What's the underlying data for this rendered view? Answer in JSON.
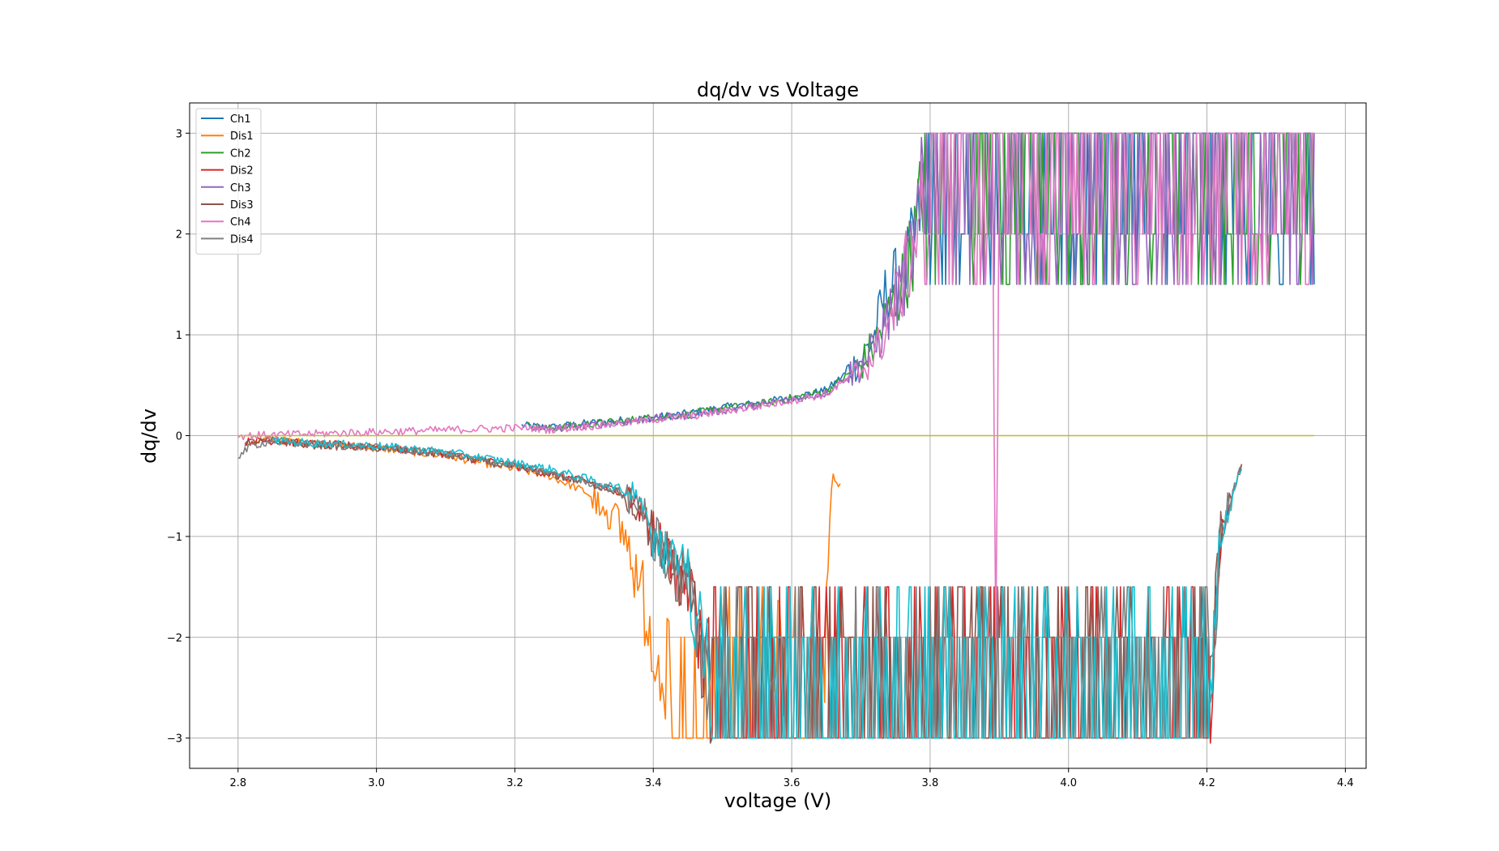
{
  "chart_data": {
    "type": "line",
    "title": "dq/dv vs Voltage",
    "xlabel": "voltage (V)",
    "ylabel": "dq/dv",
    "xlim": [
      2.73,
      4.43
    ],
    "ylim": [
      -3.3,
      3.3
    ],
    "xticks": [
      2.8,
      3.0,
      3.2,
      3.4,
      3.6,
      3.8,
      4.0,
      4.2,
      4.4
    ],
    "xtick_labels": [
      "2.8",
      "3.0",
      "3.2",
      "3.4",
      "3.6",
      "3.8",
      "4.0",
      "4.2",
      "4.4"
    ],
    "yticks": [
      -3,
      -2,
      -1,
      0,
      1,
      2,
      3
    ],
    "ytick_labels": [
      "−3",
      "−2",
      "−1",
      "0",
      "1",
      "2",
      "3"
    ],
    "grid": true,
    "legend_position": "top-left",
    "series": [
      {
        "name": "Ch1",
        "color": "#1f77b4",
        "kind": "charge",
        "x": [
          3.21,
          3.25,
          3.3,
          3.35,
          3.4,
          3.45,
          3.5,
          3.55,
          3.6,
          3.65,
          3.7,
          3.72,
          3.74,
          3.76,
          3.78,
          3.8,
          3.85,
          3.9,
          3.95,
          4.0,
          4.05,
          4.1,
          4.15,
          4.2,
          4.25,
          4.3,
          4.355
        ],
        "y": [
          0.1,
          0.08,
          0.12,
          0.15,
          0.18,
          0.22,
          0.28,
          0.32,
          0.38,
          0.45,
          0.75,
          1.0,
          1.5,
          1.5,
          2.0,
          3.0,
          3.0,
          3.0,
          3.0,
          3.0,
          3.0,
          3.0,
          3.0,
          3.0,
          3.0,
          3.0,
          3.0
        ]
      },
      {
        "name": "Dis1",
        "color": "#ff7f0e",
        "kind": "discharge",
        "x": [
          2.82,
          2.85,
          2.9,
          3.0,
          3.1,
          3.2,
          3.25,
          3.3,
          3.33,
          3.36,
          3.38,
          3.4,
          3.45,
          3.5,
          3.55,
          3.58,
          3.6,
          3.645,
          3.65,
          3.66,
          3.67
        ],
        "y": [
          -0.05,
          -0.04,
          -0.07,
          -0.12,
          -0.2,
          -0.33,
          -0.4,
          -0.55,
          -0.7,
          -1.0,
          -1.5,
          -2.0,
          -3.0,
          -3.0,
          -3.0,
          -2.0,
          -3.0,
          -3.0,
          -1.5,
          -0.4,
          -0.5
        ]
      },
      {
        "name": "Ch2",
        "color": "#2ca02c",
        "kind": "charge",
        "x": [
          3.22,
          3.25,
          3.3,
          3.35,
          3.4,
          3.45,
          3.5,
          3.55,
          3.6,
          3.65,
          3.7,
          3.72,
          3.74,
          3.76,
          3.78,
          3.8,
          3.85,
          3.9,
          3.95,
          4.0,
          4.05,
          4.1,
          4.15,
          4.2,
          4.25,
          4.3,
          4.355
        ],
        "y": [
          0.1,
          0.07,
          0.11,
          0.14,
          0.18,
          0.21,
          0.27,
          0.31,
          0.37,
          0.44,
          0.7,
          0.9,
          1.2,
          1.5,
          2.0,
          3.0,
          3.0,
          3.0,
          3.0,
          3.0,
          3.0,
          3.0,
          3.0,
          3.0,
          3.0,
          3.0,
          3.0
        ]
      },
      {
        "name": "Dis2",
        "color": "#d62728",
        "kind": "discharge",
        "x": [
          2.81,
          2.85,
          2.9,
          3.0,
          3.1,
          3.2,
          3.25,
          3.3,
          3.35,
          3.38,
          3.4,
          3.45,
          3.5,
          3.55,
          3.6,
          3.7,
          3.8,
          3.9,
          4.0,
          4.1,
          4.2,
          4.22,
          4.24,
          4.25
        ],
        "y": [
          -0.06,
          -0.05,
          -0.08,
          -0.11,
          -0.18,
          -0.3,
          -0.38,
          -0.45,
          -0.55,
          -0.7,
          -1.0,
          -1.5,
          -3.0,
          -3.0,
          -3.0,
          -3.0,
          -3.0,
          -3.0,
          -3.0,
          -3.0,
          -3.0,
          -1.0,
          -0.5,
          -0.3
        ]
      },
      {
        "name": "Ch3",
        "color": "#9467bd",
        "kind": "charge",
        "x": [
          3.22,
          3.25,
          3.3,
          3.35,
          3.4,
          3.45,
          3.5,
          3.55,
          3.6,
          3.65,
          3.7,
          3.72,
          3.74,
          3.76,
          3.78,
          3.8,
          3.85,
          3.9,
          3.95,
          4.0,
          4.05,
          4.1,
          4.15,
          4.2,
          4.25,
          4.3,
          4.355
        ],
        "y": [
          0.09,
          0.06,
          0.1,
          0.13,
          0.17,
          0.2,
          0.25,
          0.3,
          0.36,
          0.42,
          0.7,
          0.85,
          1.2,
          1.5,
          2.0,
          3.0,
          3.0,
          3.0,
          3.0,
          3.0,
          3.0,
          3.0,
          3.0,
          3.0,
          3.0,
          3.0,
          3.0
        ]
      },
      {
        "name": "Dis3",
        "color": "#8c564b",
        "kind": "discharge",
        "x": [
          2.81,
          2.85,
          2.9,
          3.0,
          3.1,
          3.2,
          3.25,
          3.3,
          3.35,
          3.38,
          3.4,
          3.45,
          3.5,
          3.55,
          3.6,
          3.7,
          3.8,
          3.9,
          4.0,
          4.1,
          4.2,
          4.22,
          4.24,
          4.25
        ],
        "y": [
          -0.07,
          -0.05,
          -0.09,
          -0.12,
          -0.19,
          -0.31,
          -0.38,
          -0.46,
          -0.56,
          -0.72,
          -1.0,
          -1.5,
          -3.0,
          -3.0,
          -3.0,
          -3.0,
          -3.0,
          -3.0,
          -3.0,
          -3.0,
          -3.0,
          -1.0,
          -0.5,
          -0.3
        ]
      },
      {
        "name": "Ch4",
        "color": "#e377c2",
        "kind": "charge",
        "x": [
          2.8,
          2.82,
          3.22,
          3.25,
          3.3,
          3.35,
          3.4,
          3.45,
          3.5,
          3.55,
          3.6,
          3.65,
          3.7,
          3.72,
          3.74,
          3.76,
          3.78,
          3.8,
          3.85,
          3.89,
          3.895,
          3.9,
          3.95,
          4.0,
          4.05,
          4.1,
          4.15,
          4.2,
          4.25,
          4.3,
          4.355
        ],
        "y": [
          0.0,
          0.0,
          0.08,
          0.06,
          0.09,
          0.12,
          0.16,
          0.19,
          0.24,
          0.29,
          0.35,
          0.41,
          0.65,
          0.8,
          1.1,
          1.5,
          2.0,
          3.0,
          3.0,
          3.0,
          -3.0,
          3.0,
          3.0,
          3.0,
          3.0,
          3.0,
          3.0,
          3.0,
          3.0,
          3.0,
          3.0
        ]
      },
      {
        "name": "Dis4",
        "color": "#7f7f7f",
        "kind": "discharge",
        "x": [
          2.8,
          2.82,
          2.85,
          2.9,
          3.0,
          3.1,
          3.2,
          3.25,
          3.3,
          3.35,
          3.38,
          3.4,
          3.45,
          3.5,
          3.55,
          3.6,
          3.7,
          3.8,
          3.9,
          4.0,
          4.1,
          4.2,
          4.22,
          4.24,
          4.25
        ],
        "y": [
          -0.2,
          -0.1,
          -0.05,
          -0.08,
          -0.12,
          -0.18,
          -0.3,
          -0.37,
          -0.45,
          -0.55,
          -0.7,
          -1.0,
          -1.5,
          -3.0,
          -3.0,
          -3.0,
          -3.0,
          -3.0,
          -3.0,
          -3.0,
          -3.0,
          -3.0,
          -1.0,
          -0.5,
          -0.3
        ]
      },
      {
        "name": "",
        "color": "#bcbd22",
        "kind": "baseline",
        "x": [
          2.8,
          4.355
        ],
        "y": [
          0.0,
          0.0
        ]
      },
      {
        "name": "",
        "color": "#17becf",
        "kind": "discharge",
        "x": [
          2.85,
          2.9,
          3.0,
          3.1,
          3.2,
          3.25,
          3.3,
          3.35,
          3.38,
          3.4,
          3.45,
          3.5,
          3.55,
          3.6,
          3.7,
          3.8,
          3.9,
          4.0,
          4.1,
          4.2,
          4.22,
          4.24,
          4.25
        ],
        "y": [
          -0.05,
          -0.07,
          -0.1,
          -0.16,
          -0.27,
          -0.33,
          -0.42,
          -0.52,
          -0.65,
          -1.0,
          -1.5,
          -3.0,
          -3.0,
          -3.0,
          -3.0,
          -3.0,
          -3.0,
          -3.0,
          -3.0,
          -3.0,
          -1.0,
          -0.5,
          -0.3
        ]
      }
    ]
  }
}
